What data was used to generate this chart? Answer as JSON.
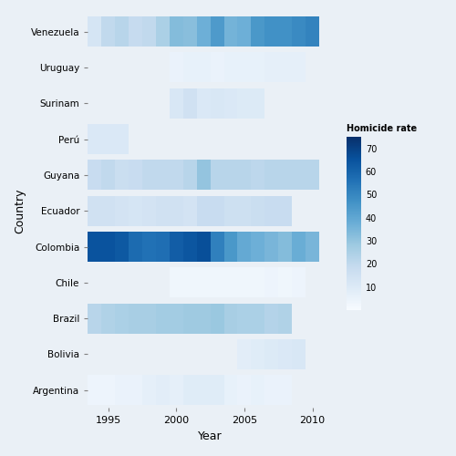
{
  "countries": [
    "Argentina",
    "Bolivia",
    "Brazil",
    "Chile",
    "Colombia",
    "Ecuador",
    "Guyana",
    "Perú",
    "Surinam",
    "Uruguay",
    "Venezuela"
  ],
  "years": [
    1994,
    1995,
    1996,
    1997,
    1998,
    1999,
    2000,
    2001,
    2002,
    2003,
    2004,
    2005,
    2006,
    2007,
    2008,
    2009,
    2010,
    2011
  ],
  "data": {
    "Venezuela": [
      13,
      20,
      22,
      19,
      20,
      25,
      33,
      32,
      37,
      44,
      36,
      37,
      45,
      47,
      47,
      49,
      51,
      null
    ],
    "Uruguay": [
      null,
      null,
      null,
      null,
      null,
      null,
      5,
      6,
      6,
      5,
      6,
      6,
      6,
      7,
      7,
      7,
      null,
      null
    ],
    "Surinam": [
      null,
      null,
      null,
      null,
      null,
      null,
      12,
      15,
      11,
      12,
      11,
      10,
      10,
      null,
      null,
      null,
      null,
      null
    ],
    "Perú": [
      11,
      11,
      11,
      null,
      null,
      null,
      null,
      null,
      null,
      null,
      null,
      null,
      null,
      null,
      null,
      null,
      null,
      null
    ],
    "Guyana": [
      18,
      20,
      17,
      18,
      20,
      20,
      20,
      22,
      30,
      22,
      22,
      22,
      21,
      22,
      22,
      22,
      22,
      null
    ],
    "Ecuador": [
      15,
      15,
      14,
      13,
      14,
      15,
      15,
      14,
      18,
      18,
      16,
      16,
      17,
      18,
      18,
      null,
      null,
      null
    ],
    "Colombia": [
      65,
      65,
      63,
      58,
      56,
      57,
      62,
      64,
      66,
      52,
      45,
      39,
      37,
      35,
      33,
      38,
      35,
      null
    ],
    "Chile": [
      null,
      null,
      null,
      null,
      null,
      null,
      3,
      3,
      3,
      3,
      3,
      3,
      3,
      4,
      3,
      4,
      null,
      null
    ],
    "Brazil": [
      22,
      24,
      25,
      26,
      26,
      27,
      27,
      28,
      28,
      29,
      26,
      25,
      25,
      23,
      24,
      null,
      null,
      null
    ],
    "Bolivia": [
      null,
      null,
      null,
      null,
      null,
      null,
      null,
      null,
      null,
      null,
      null,
      8,
      9,
      10,
      11,
      12,
      null,
      null
    ],
    "Argentina": [
      4,
      4,
      5,
      5,
      7,
      8,
      7,
      9,
      9,
      9,
      6,
      5,
      6,
      5,
      5,
      null,
      null,
      null
    ]
  },
  "vmin": 0,
  "vmax": 75,
  "colorbar_ticks": [
    10,
    20,
    30,
    40,
    50,
    60,
    70
  ],
  "colorbar_label": "Homicide rate",
  "xlabel": "Year",
  "ylabel": "Country",
  "bg_color": "#eaf0f6",
  "cmap": "Blues",
  "year_start": 1994,
  "year_end": 2011,
  "xticks": [
    1995,
    2000,
    2005,
    2010
  ]
}
